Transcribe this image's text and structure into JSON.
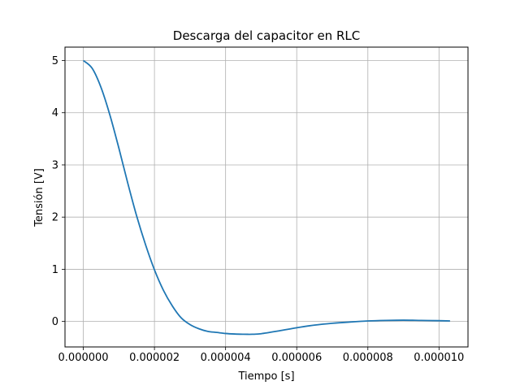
{
  "chart_data": {
    "type": "line",
    "title": "Descarga del capacitor en RLC",
    "xlabel": "Tiempo [s]",
    "ylabel": "Tensión [V]",
    "xlim": [
      -5.15e-07,
      1.0815e-05
    ],
    "ylim": [
      -0.488,
      5.257
    ],
    "x_ticks": [
      0,
      2e-06,
      4e-06,
      6e-06,
      8e-06,
      1e-05
    ],
    "x_tick_labels": [
      "0.000000",
      "0.000002",
      "0.000004",
      "0.000006",
      "0.000008",
      "0.000010"
    ],
    "y_ticks": [
      0,
      1,
      2,
      3,
      4,
      5
    ],
    "y_tick_labels": [
      "0",
      "1",
      "2",
      "3",
      "4",
      "5"
    ],
    "grid": true,
    "line_color": "#1f77b4",
    "series": [
      {
        "x": [
          0,
          2.5e-07,
          5e-07,
          7.5e-07,
          1e-06,
          1.25e-06,
          1.5e-06,
          1.75e-06,
          2e-06,
          2.25e-06,
          2.5e-06,
          2.75e-06,
          3e-06,
          3.25e-06,
          3.5e-06,
          3.75e-06,
          4e-06,
          4.25e-06,
          4.5e-06,
          4.625e-06,
          4.75e-06,
          5e-06,
          5.5e-06,
          6e-06,
          6.5e-06,
          7e-06,
          7.5e-06,
          8e-06,
          8.5e-06,
          9e-06,
          9.5e-06,
          1e-05,
          1.031e-05
        ],
        "values": [
          5.0,
          4.85,
          4.48,
          3.95,
          3.32,
          2.65,
          2.02,
          1.47,
          0.99,
          0.6,
          0.3,
          0.07,
          -0.06,
          -0.14,
          -0.19,
          -0.21,
          -0.23,
          -0.24,
          -0.245,
          -0.246,
          -0.245,
          -0.235,
          -0.18,
          -0.12,
          -0.07,
          -0.035,
          -0.01,
          0.01,
          0.02,
          0.025,
          0.02,
          0.015,
          0.01
        ]
      }
    ]
  }
}
